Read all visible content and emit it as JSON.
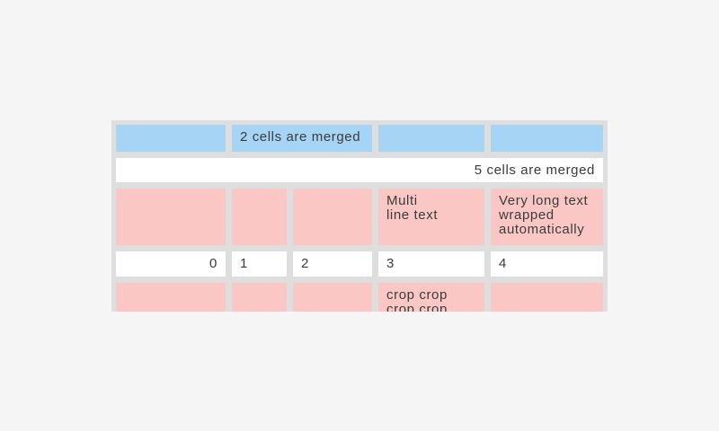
{
  "screen": {
    "background": "#f5f5f5"
  },
  "table": {
    "description": "table-with-merged-cells",
    "colors": {
      "grid_background": "#dedede",
      "header_cell_blue": "#a6d4f5",
      "highlight_cell_pink": "#fac7c5",
      "plain_cell_white": "#ffffff",
      "text": "#3b3b3b"
    },
    "rows": [
      {
        "style": "blue",
        "cells": [
          {
            "text": ""
          },
          {
            "text": "2 cells are merged",
            "colspan": 2
          },
          {
            "text": ""
          },
          {
            "text": ""
          }
        ]
      },
      {
        "style": "white",
        "cells": [
          {
            "text": "5 cells are merged",
            "colspan": 5,
            "align": "right"
          }
        ]
      },
      {
        "style": "pink",
        "cells": [
          {
            "text": ""
          },
          {
            "text": ""
          },
          {
            "text": ""
          },
          {
            "text": "Multi\nline text"
          },
          {
            "text": "Very long text wrapped automatically"
          }
        ]
      },
      {
        "style": "white",
        "cells": [
          {
            "text": "0",
            "align": "right"
          },
          {
            "text": "1"
          },
          {
            "text": "2"
          },
          {
            "text": "3"
          },
          {
            "text": "4"
          }
        ]
      },
      {
        "style": "pink",
        "cells": [
          {
            "text": ""
          },
          {
            "text": ""
          },
          {
            "text": ""
          },
          {
            "text": "crop crop\ncrop crop",
            "clipped": true
          },
          {
            "text": ""
          }
        ]
      }
    ]
  }
}
